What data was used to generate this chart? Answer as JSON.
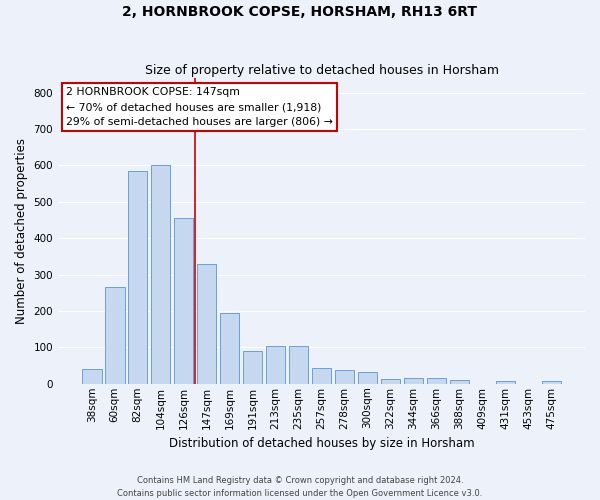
{
  "title": "2, HORNBROOK COPSE, HORSHAM, RH13 6RT",
  "subtitle": "Size of property relative to detached houses in Horsham",
  "xlabel": "Distribution of detached houses by size in Horsham",
  "ylabel": "Number of detached properties",
  "categories": [
    "38sqm",
    "60sqm",
    "82sqm",
    "104sqm",
    "126sqm",
    "147sqm",
    "169sqm",
    "191sqm",
    "213sqm",
    "235sqm",
    "257sqm",
    "278sqm",
    "300sqm",
    "322sqm",
    "344sqm",
    "366sqm",
    "388sqm",
    "409sqm",
    "431sqm",
    "453sqm",
    "475sqm"
  ],
  "values": [
    40,
    265,
    585,
    600,
    455,
    330,
    195,
    90,
    103,
    103,
    42,
    37,
    33,
    13,
    15,
    15,
    10,
    0,
    7,
    0,
    7
  ],
  "bar_color": "#c5d8f0",
  "bar_edge_color": "#6a9fd8",
  "highlight_index": 5,
  "highlight_color": "#cc0000",
  "annotation_line1": "2 HORNBROOK COPSE: 147sqm",
  "annotation_line2": "← 70% of detached houses are smaller (1,918)",
  "annotation_line3": "29% of semi-detached houses are larger (806) →",
  "annotation_box_color": "#ffffff",
  "annotation_box_edge": "#cc0000",
  "ylim": [
    0,
    840
  ],
  "yticks": [
    0,
    100,
    200,
    300,
    400,
    500,
    600,
    700,
    800
  ],
  "background_color": "#edf2fa",
  "grid_color": "#ffffff",
  "title_fontsize": 10,
  "subtitle_fontsize": 9,
  "axis_label_fontsize": 8.5,
  "tick_fontsize": 7.5,
  "footer_text": "Contains HM Land Registry data © Crown copyright and database right 2024.\nContains public sector information licensed under the Open Government Licence v3.0."
}
